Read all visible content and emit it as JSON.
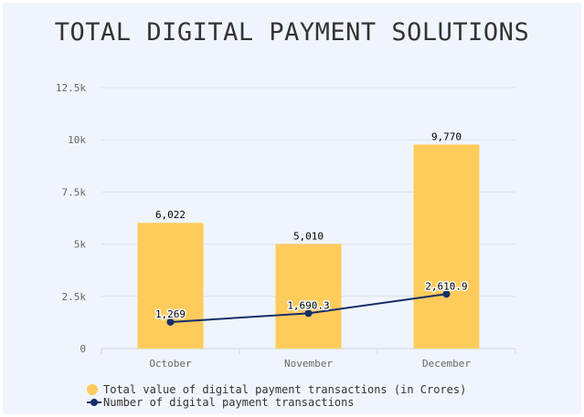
{
  "chart_data": {
    "type": "bar",
    "title": "TOTAL DIGITAL PAYMENT SOLUTIONS",
    "categories": [
      "October",
      "November",
      "December"
    ],
    "y_ticks": [
      "0",
      "2.5k",
      "5k",
      "7.5k",
      "10k",
      "12.5k"
    ],
    "ylim": [
      0,
      12500
    ],
    "grid": true,
    "legend_position": "bottom-left",
    "series": [
      {
        "name": "Total value of digital payment transactions (in Crores)",
        "type": "bar",
        "color": "#ffcc5c",
        "values": [
          6022,
          5010,
          9770
        ],
        "labels": [
          "6,022",
          "5,010",
          "9,770"
        ]
      },
      {
        "name": "Number of digital payment transactions",
        "type": "line",
        "color": "#142e6b",
        "values": [
          1269,
          1690.3,
          2610.9
        ],
        "labels": [
          "1,269",
          "1,690.3",
          "2,610.9"
        ]
      }
    ]
  }
}
